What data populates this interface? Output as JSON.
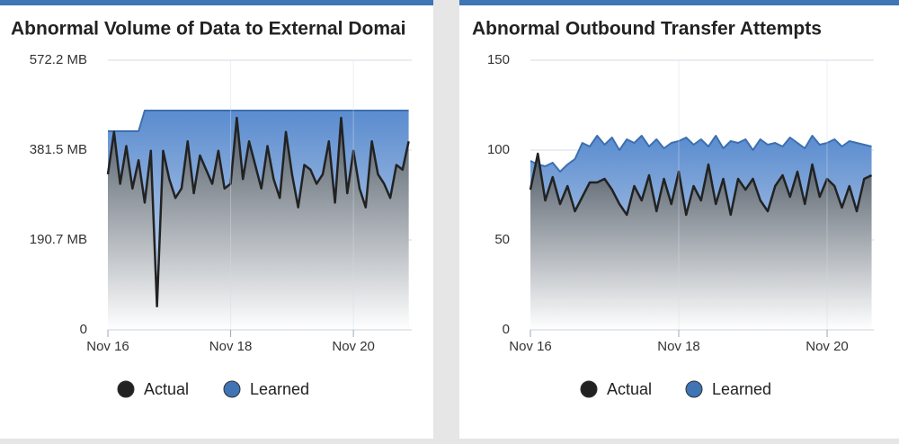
{
  "chart_data": [
    {
      "type": "area",
      "title": "Abnormal Volume of Data to External Domai",
      "x": [
        0,
        0.1,
        0.2,
        0.3,
        0.4,
        0.5,
        0.6,
        0.7,
        0.8,
        0.9,
        1,
        1.1,
        1.2,
        1.3,
        1.4,
        1.5,
        1.6,
        1.7,
        1.8,
        1.9,
        2,
        2.1,
        2.2,
        2.3,
        2.4,
        2.5,
        2.6,
        2.7,
        2.8,
        2.9,
        3,
        3.1,
        3.2,
        3.3,
        3.4,
        3.5,
        3.6,
        3.7,
        3.8,
        3.9,
        4,
        4.1,
        4.2,
        4.3,
        4.4,
        4.5,
        4.6,
        4.7,
        4.8,
        4.9
      ],
      "series": [
        {
          "name": "Actual",
          "color": "#222222",
          "values": [
            330,
            420,
            310,
            390,
            300,
            360,
            270,
            380,
            50,
            380,
            320,
            280,
            300,
            400,
            290,
            370,
            340,
            310,
            380,
            300,
            310,
            450,
            320,
            400,
            350,
            300,
            390,
            320,
            280,
            420,
            330,
            260,
            350,
            340,
            310,
            330,
            400,
            270,
            450,
            290,
            380,
            300,
            260,
            400,
            330,
            310,
            280,
            350,
            340,
            400
          ]
        },
        {
          "name": "Learned",
          "color": "#3d6fb0",
          "values": [
            421.5,
            421.5,
            421.5,
            421.5,
            421.5,
            421.5,
            465.4,
            465.4,
            465.4,
            465.4,
            465.4,
            465.4,
            465.4,
            465.4,
            465.4,
            465.4,
            465.4,
            465.4,
            465.4,
            465.4,
            465.4,
            465.4,
            465.4,
            465.4,
            465.4,
            465.4,
            465.4,
            465.4,
            465.4,
            465.4,
            465.4,
            465.4,
            465.4,
            465.4,
            465.4,
            465.4,
            465.4,
            465.4,
            465.4,
            465.4,
            465.4,
            465.4,
            465.4,
            465.4,
            465.4,
            465.4,
            465.4,
            465.4,
            465.4,
            465.4
          ]
        }
      ],
      "xlim": [
        0,
        4.95
      ],
      "xticks": [
        {
          "value": 0,
          "label": "Nov 16"
        },
        {
          "value": 2,
          "label": "Nov 18"
        },
        {
          "value": 4,
          "label": "Nov 20"
        }
      ],
      "ylim": [
        0,
        572.2
      ],
      "yticks": [
        {
          "value": 0,
          "label": "0"
        },
        {
          "value": 190.7,
          "label": "190.7 MB"
        },
        {
          "value": 381.5,
          "label": "381.5 MB"
        },
        {
          "value": 572.2,
          "label": "572.2 MB"
        }
      ],
      "grid": true
    },
    {
      "type": "area",
      "title": "Abnormal Outbound Transfer Attempts",
      "x": [
        0,
        0.1,
        0.2,
        0.3,
        0.4,
        0.5,
        0.6,
        0.7,
        0.8,
        0.9,
        1,
        1.1,
        1.2,
        1.3,
        1.4,
        1.5,
        1.6,
        1.7,
        1.8,
        1.9,
        2,
        2.1,
        2.2,
        2.3,
        2.4,
        2.5,
        2.6,
        2.7,
        2.8,
        2.9,
        3,
        3.1,
        3.2,
        3.3,
        3.4,
        3.5,
        3.6,
        3.7,
        3.8,
        3.9,
        4,
        4.1,
        4.2,
        4.3,
        4.4,
        4.5,
        4.6
      ],
      "series": [
        {
          "name": "Actual",
          "color": "#222222",
          "values": [
            78,
            98,
            72,
            85,
            70,
            80,
            66,
            74,
            82,
            82,
            84,
            78,
            70,
            64,
            80,
            72,
            86,
            66,
            84,
            70,
            88,
            64,
            80,
            72,
            92,
            70,
            84,
            64,
            84,
            78,
            84,
            72,
            66,
            80,
            86,
            74,
            88,
            70,
            92,
            74,
            84,
            80,
            68,
            80,
            66,
            84,
            86
          ]
        },
        {
          "name": "Learned",
          "color": "#3d6fb0",
          "values": [
            94,
            92,
            91,
            93,
            88,
            92,
            95,
            104,
            102,
            108,
            103,
            107,
            100,
            106,
            104,
            108,
            102,
            106,
            101,
            104,
            105,
            107,
            103,
            106,
            102,
            108,
            101,
            105,
            104,
            106,
            100,
            106,
            103,
            104,
            102,
            107,
            104,
            101,
            108,
            103,
            104,
            106,
            102,
            105,
            104,
            103,
            102
          ]
        }
      ],
      "xlim": [
        0,
        4.63
      ],
      "xticks": [
        {
          "value": 0,
          "label": "Nov 16"
        },
        {
          "value": 2,
          "label": "Nov 18"
        },
        {
          "value": 4,
          "label": "Nov 20"
        }
      ],
      "ylim": [
        0,
        150
      ],
      "yticks": [
        0,
        50,
        100,
        150
      ],
      "grid": true
    }
  ]
}
